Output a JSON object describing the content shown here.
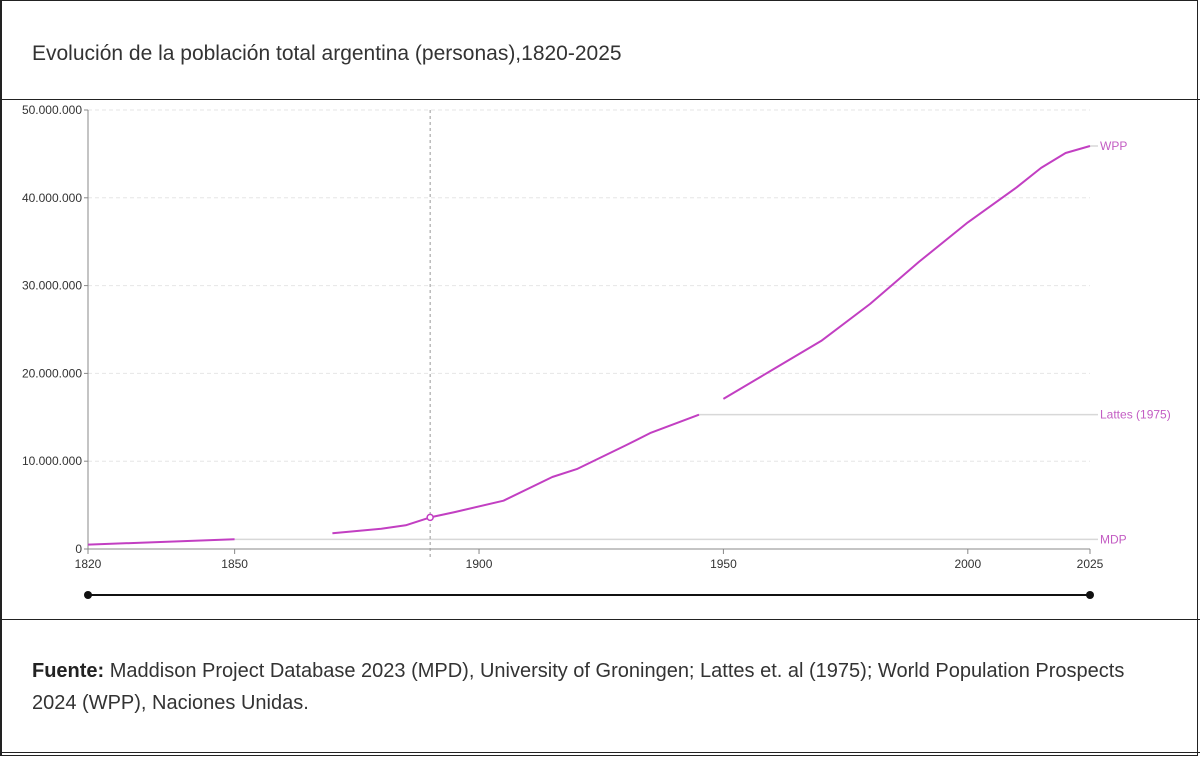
{
  "title": "Evolución de la población total argentina (personas),1820-2025",
  "source": {
    "label": "Fuente:",
    "text": " Maddison Project Database 2023 (MPD), University of Groningen; Lattes et. al (1975); World Population Prospects 2024 (WPP), Naciones Unidas."
  },
  "colors": {
    "series": "#c23fc2",
    "label": "#c35cc3",
    "grid": "#e6e6e6",
    "axis": "#888888"
  },
  "chart_data": {
    "type": "line",
    "title": "Evolución de la población total argentina (personas),1820-2025",
    "xlim": [
      1820,
      2025
    ],
    "ylim": [
      0,
      50000000
    ],
    "x_ticks": [
      "1820",
      "1850",
      "1900",
      "1950",
      "2000",
      "2025"
    ],
    "x_tick_values": [
      1820,
      1850,
      1900,
      1950,
      2000,
      2025
    ],
    "y_ticks": [
      "0",
      "10.000.000",
      "20.000.000",
      "30.000.000",
      "40.000.000",
      "50.000.000"
    ],
    "y_tick_values": [
      0,
      10000000,
      20000000,
      30000000,
      40000000,
      50000000
    ],
    "grid": true,
    "hover_year": 1890,
    "range_slider": [
      1820,
      2025
    ],
    "series": [
      {
        "name": "MDP",
        "x": [
          1820,
          1850
        ],
        "y": [
          500000,
          1100000
        ]
      },
      {
        "name": "Lattes (1975)",
        "x": [
          1870,
          1880,
          1885,
          1890,
          1895,
          1905,
          1915,
          1920,
          1930,
          1935,
          1945
        ],
        "y": [
          1800000,
          2300000,
          2700000,
          3600000,
          4200000,
          5500000,
          8200000,
          9100000,
          11800000,
          13200000,
          15300000
        ]
      },
      {
        "name": "WPP",
        "x": [
          1950,
          1960,
          1970,
          1980,
          1990,
          2000,
          2010,
          2015,
          2020,
          2025
        ],
        "y": [
          17100000,
          20400000,
          23700000,
          27900000,
          32700000,
          37200000,
          41200000,
          43400000,
          45100000,
          45900000
        ]
      }
    ]
  }
}
